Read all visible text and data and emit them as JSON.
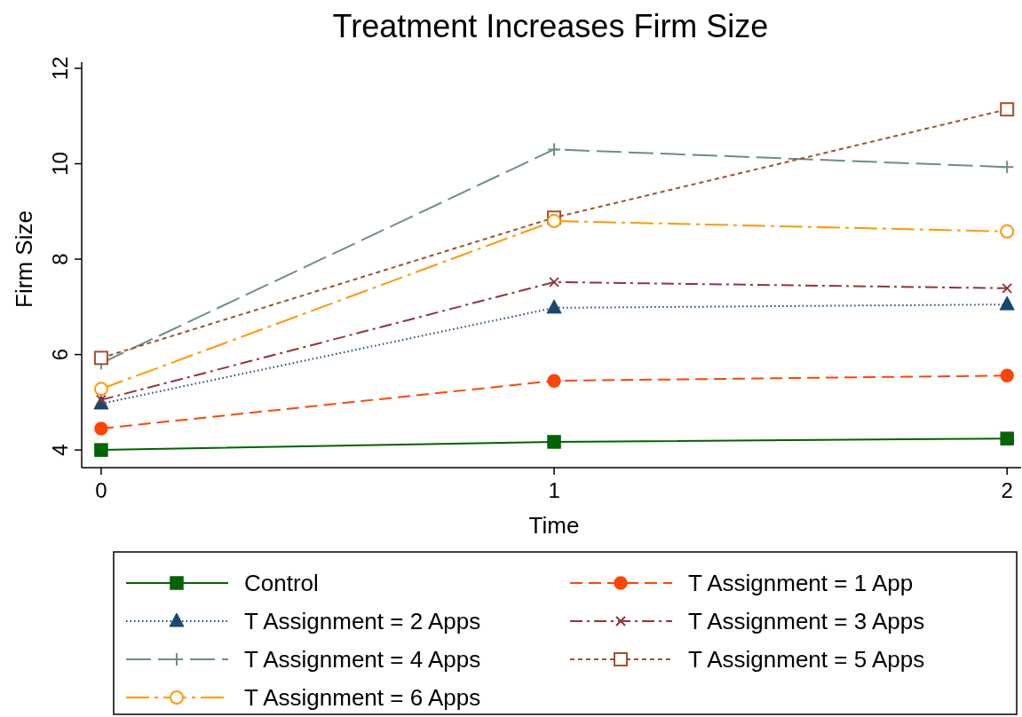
{
  "chart_data": {
    "type": "line",
    "title": "Treatment Increases Firm Size",
    "xlabel": "Time",
    "ylabel": "Firm Size",
    "x": [
      0,
      1,
      2
    ],
    "xlim": [
      -0.043,
      2.031
    ],
    "xticks": [
      0,
      1,
      2
    ],
    "ylim": [
      3.63,
      12.13
    ],
    "yticks": [
      4,
      6,
      8,
      10,
      12
    ],
    "grid": false,
    "legend": "bottom",
    "series": [
      {
        "name": "Control",
        "color": "#006400",
        "values": [
          4.0,
          4.17,
          4.24
        ],
        "line_style": "solid",
        "marker": "square"
      },
      {
        "name": "T Assignment = 1 App",
        "color": "#ff4500",
        "values": [
          4.45,
          5.45,
          5.56
        ],
        "line_style": "dashed",
        "marker": "circle"
      },
      {
        "name": "T Assignment = 2 Apps",
        "color": "#1a476f",
        "values": [
          4.97,
          6.98,
          7.05
        ],
        "line_style": "dotted",
        "marker": "triangle"
      },
      {
        "name": "T Assignment = 3 Apps",
        "color": "#90353b",
        "values": [
          5.05,
          7.52,
          7.39
        ],
        "line_style": "dashdot",
        "marker": "x"
      },
      {
        "name": "T Assignment = 4 Apps",
        "color": "#6e8e84",
        "values": [
          5.82,
          10.3,
          9.93
        ],
        "line_style": "longdash",
        "marker": "plus"
      },
      {
        "name": "T Assignment = 5 Apps",
        "color": "#a0522d",
        "values": [
          5.93,
          8.87,
          11.14
        ],
        "line_style": "shortdash",
        "marker": "square-open"
      },
      {
        "name": "T Assignment = 6 Apps",
        "color": "#ff9900",
        "values": [
          5.28,
          8.8,
          8.58
        ],
        "line_style": "longdashdot",
        "marker": "circle-open"
      }
    ]
  }
}
